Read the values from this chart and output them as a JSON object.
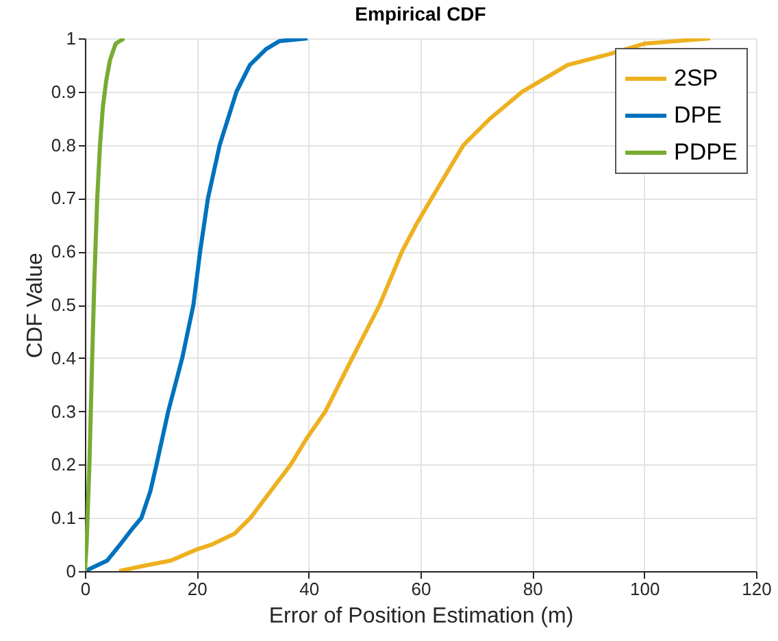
{
  "chart_data": {
    "type": "line",
    "title": "Empirical CDF",
    "xlabel": "Error of Position Estimation (m)",
    "ylabel": "CDF Value",
    "xlim": [
      0,
      120
    ],
    "xticks": [
      0,
      20,
      40,
      60,
      80,
      100,
      120
    ],
    "ylim": [
      0,
      1
    ],
    "yticks": [
      0,
      0.1,
      0.2,
      0.3,
      0.4,
      0.5,
      0.6,
      0.7,
      0.8,
      0.9,
      1
    ],
    "grid": true,
    "legend": "top right",
    "line_style": "solid",
    "marker": "none",
    "series": [
      {
        "name": "2SP",
        "color": "#edb120",
        "x": [
          6.1,
          10.5,
          15.4,
          19.8,
          22.7,
          26.7,
          29.6,
          33.2,
          36.8,
          39.7,
          43,
          47.8,
          52.7,
          56.7,
          59.2,
          62,
          67.7,
          72.5,
          78.2,
          86.3,
          93.6,
          100,
          111.8
        ],
        "values": [
          0,
          0.01,
          0.02,
          0.04,
          0.05,
          0.07,
          0.1,
          0.15,
          0.2,
          0.25,
          0.3,
          0.4,
          0.5,
          0.6,
          0.65,
          0.7,
          0.8,
          0.85,
          0.9,
          0.95,
          0.97,
          0.99,
          1
        ]
      },
      {
        "name": "DPE",
        "color": "#0072bd",
        "x": [
          0,
          4,
          6.3,
          8.5,
          10.1,
          11.7,
          12.8,
          14.9,
          17.4,
          19.4,
          20.6,
          22,
          24.1,
          27.1,
          29.5,
          32.4,
          34.8,
          39.8
        ],
        "values": [
          0,
          0.02,
          0.05,
          0.08,
          0.1,
          0.15,
          0.2,
          0.3,
          0.4,
          0.5,
          0.6,
          0.7,
          0.8,
          0.9,
          0.95,
          0.98,
          0.995,
          1
        ]
      },
      {
        "name": "PDPE",
        "color": "#77ac30",
        "x": [
          0,
          0.3,
          0.8,
          1.3,
          1.7,
          2.2,
          2.7,
          3.2,
          3.8,
          4.5,
          5.5,
          7
        ],
        "values": [
          0,
          0.05,
          0.2,
          0.4,
          0.55,
          0.7,
          0.8,
          0.87,
          0.92,
          0.96,
          0.99,
          1
        ]
      }
    ]
  }
}
